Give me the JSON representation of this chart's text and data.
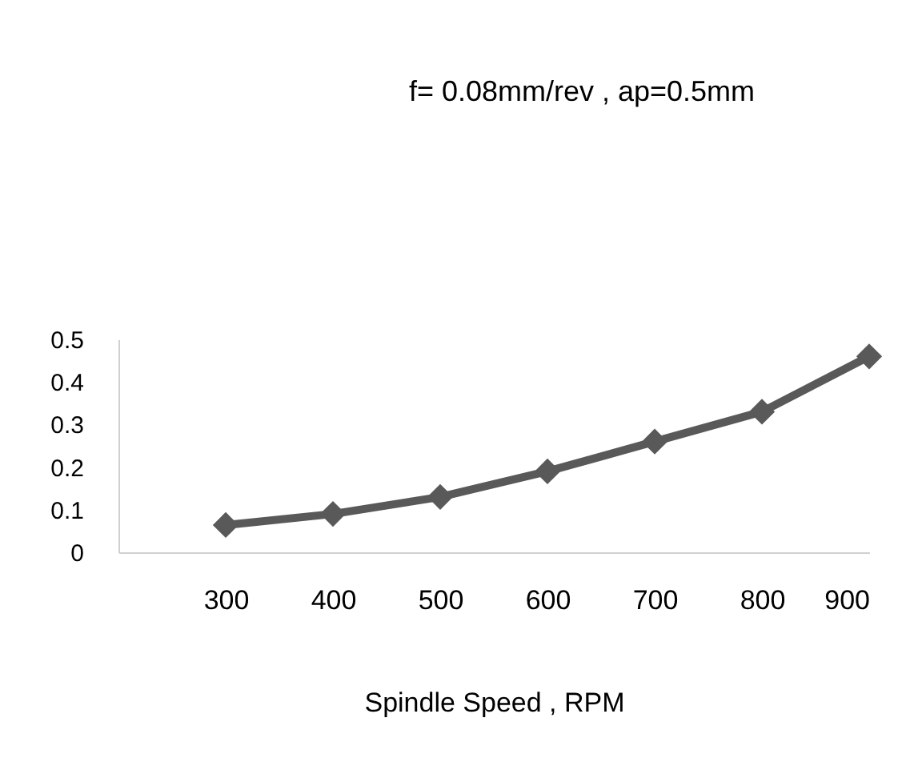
{
  "chart_data": {
    "type": "line",
    "title": "f= 0.08mm/rev , ap=0.5mm",
    "xlabel": "Spindle Speed , RPM",
    "x": [
      300,
      400,
      500,
      600,
      700,
      800,
      900
    ],
    "series": [
      {
        "color": "#595959",
        "values": [
          0.064,
          0.09,
          0.13,
          0.19,
          0.26,
          0.33,
          0.46
        ]
      }
    ],
    "xlim": [
      200,
      900
    ],
    "xticks": [
      300,
      400,
      500,
      600,
      700,
      800,
      900
    ],
    "ylim": [
      0,
      0.5
    ],
    "yticks": [
      0,
      0.1,
      0.2,
      0.3,
      0.4,
      0.5
    ],
    "marker": "diamond",
    "line_style": "solid",
    "grid": false,
    "legend": false
  }
}
